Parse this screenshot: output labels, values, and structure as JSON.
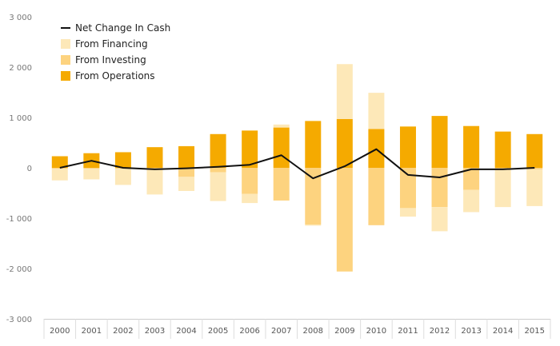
{
  "chart_data": {
    "type": "bar",
    "stacked": true,
    "categories": [
      "2000",
      "2001",
      "2002",
      "2003",
      "2004",
      "2005",
      "2006",
      "2007",
      "2008",
      "2009",
      "2010",
      "2011",
      "2012",
      "2013",
      "2014",
      "2015"
    ],
    "ylim": [
      -3000,
      3000
    ],
    "yticks": [
      3000,
      2000,
      1000,
      0,
      -1000,
      -2000,
      -3000
    ],
    "ytick_labels": [
      "3 000",
      "2 000",
      "1 000",
      "0",
      "-1 000",
      "-2 000",
      "-3 000"
    ],
    "grid": false,
    "legend_position": "top-left",
    "legend": [
      {
        "label": "Net Change In Cash",
        "kind": "line",
        "color": "#111111"
      },
      {
        "label": "From Financing",
        "kind": "bar",
        "color": "#fde8b8"
      },
      {
        "label": "From Investing",
        "kind": "bar",
        "color": "#fdd37f"
      },
      {
        "label": "From Operations",
        "kind": "bar",
        "color": "#f5aa00"
      }
    ],
    "series": [
      {
        "name": "From Operations",
        "color": "#f5aa00",
        "values": [
          230,
          290,
          310,
          410,
          430,
          670,
          740,
          800,
          930,
          970,
          770,
          820,
          1030,
          830,
          720,
          670
        ]
      },
      {
        "name": "From Investing",
        "color": "#fdd37f",
        "values": [
          -20,
          -20,
          -20,
          -20,
          -180,
          -90,
          -520,
          -650,
          -1130,
          -2060,
          -1140,
          -800,
          -780,
          -440,
          -30,
          -30
        ]
      },
      {
        "name": "From Financing",
        "color": "#fde8b8",
        "values": [
          -230,
          -210,
          -320,
          -510,
          -280,
          -570,
          -180,
          60,
          -20,
          1090,
          720,
          -170,
          -480,
          -440,
          -750,
          -730
        ]
      },
      {
        "name": "Net Change In Cash",
        "type": "line",
        "color": "#111111",
        "values": [
          0,
          140,
          0,
          -30,
          -10,
          20,
          60,
          250,
          -210,
          30,
          370,
          -140,
          -190,
          -30,
          -30,
          0
        ]
      }
    ]
  }
}
